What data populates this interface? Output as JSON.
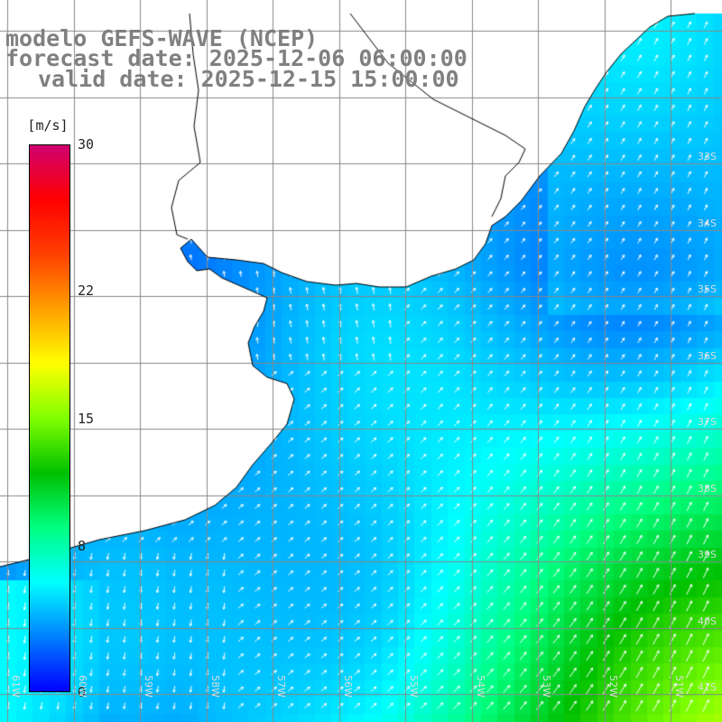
{
  "titles": {
    "line1": "modelo GEFS-WAVE (NCEP)",
    "line2": "forecast date: 2025-12-06 06:00:00",
    "line3": "valid date: 2025-12-15 15:00:00"
  },
  "colorbar": {
    "unit": "[m/s]",
    "ticks": [
      "30",
      "22",
      "15",
      "8",
      "0"
    ],
    "tick_values": [
      30,
      22,
      15,
      8,
      0
    ],
    "min": 0,
    "max": 30,
    "colors": [
      "#0000ff",
      "#0080ff",
      "#00ffff",
      "#00ff80",
      "#00c000",
      "#80ff00",
      "#ffff00",
      "#ffa000",
      "#ff4000",
      "#ff0000",
      "#d00070"
    ]
  },
  "lat_labels": [
    "33S",
    "34S",
    "35S",
    "36S",
    "37S",
    "38S",
    "39S",
    "40S",
    "41S"
  ],
  "lon_labels": [
    "61W",
    "60W",
    "59W",
    "58W",
    "57W",
    "56W",
    "55W",
    "54W",
    "53W",
    "52W",
    "51W"
  ],
  "field": {
    "variable": "wind speed",
    "units": "m/s",
    "min_value": 0,
    "max_value": 30
  },
  "colors": {
    "land": "#ffffff",
    "coast": "#000000",
    "grid": "#888888",
    "arrow": "#ffffff",
    "title": "#808080"
  }
}
